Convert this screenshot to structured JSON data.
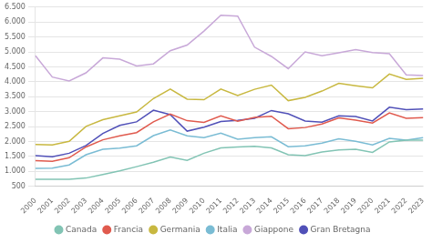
{
  "chart_data": {
    "type": "line",
    "categories": [
      "2000",
      "2001",
      "2002",
      "2003",
      "2004",
      "2005",
      "2006",
      "2007",
      "2008",
      "2009",
      "2010",
      "2011",
      "2012",
      "2013",
      "2014",
      "2015",
      "2016",
      "2017",
      "2018",
      "2019",
      "2020",
      "2021",
      "2022",
      "2023"
    ],
    "series": [
      {
        "name": "Canada",
        "color": "#82c4b4",
        "values": [
          740,
          740,
          740,
          780,
          900,
          1020,
          1160,
          1310,
          1480,
          1370,
          1610,
          1790,
          1820,
          1840,
          1790,
          1560,
          1530,
          1650,
          1720,
          1740,
          1640,
          1990,
          2050,
          2050
        ]
      },
      {
        "name": "Francia",
        "color": "#e05a4e",
        "values": [
          1360,
          1340,
          1460,
          1820,
          2060,
          2190,
          2300,
          2660,
          2920,
          2700,
          2640,
          2860,
          2680,
          2810,
          2850,
          2430,
          2470,
          2590,
          2790,
          2720,
          2620,
          2960,
          2780,
          2800
        ]
      },
      {
        "name": "Germania",
        "color": "#c8b840",
        "values": [
          1900,
          1890,
          2010,
          2510,
          2730,
          2860,
          2990,
          3440,
          3760,
          3420,
          3400,
          3760,
          3540,
          3750,
          3890,
          3370,
          3480,
          3690,
          3950,
          3870,
          3800,
          4260,
          4080,
          4120
        ]
      },
      {
        "name": "Italia",
        "color": "#7abcd4",
        "values": [
          1100,
          1110,
          1220,
          1560,
          1740,
          1780,
          1860,
          2200,
          2390,
          2190,
          2130,
          2280,
          2080,
          2130,
          2160,
          1830,
          1860,
          1950,
          2090,
          2010,
          1890,
          2110,
          2050,
          2130
        ]
      },
      {
        "name": "Giappone",
        "color": "#c8a8d8",
        "values": [
          4870,
          4160,
          4030,
          4300,
          4800,
          4760,
          4530,
          4600,
          5040,
          5230,
          5700,
          6230,
          6200,
          5160,
          4850,
          4440,
          5000,
          4870,
          4970,
          5080,
          4980,
          4940,
          4230,
          4210
        ]
      },
      {
        "name": "Gran Bretagna",
        "color": "#5050b8",
        "values": [
          1530,
          1490,
          1610,
          1870,
          2270,
          2540,
          2660,
          3050,
          2900,
          2350,
          2480,
          2670,
          2710,
          2780,
          3040,
          2930,
          2690,
          2650,
          2860,
          2840,
          2690,
          3150,
          3070,
          3090
        ]
      }
    ],
    "ylim": [
      500,
      6500
    ],
    "yticks": [
      500,
      {
        "value": 1000,
        "label": "1.000"
      },
      {
        "value": 1500,
        "label": "1.500"
      },
      {
        "value": 2000,
        "label": "2.000"
      },
      {
        "value": 2500,
        "label": "2.500"
      },
      {
        "value": 3000,
        "label": "3.000"
      },
      {
        "value": 3500,
        "label": "3.500"
      },
      {
        "value": 4000,
        "label": "4.000"
      },
      {
        "value": 4500,
        "label": "4.500"
      },
      {
        "value": 5000,
        "label": "5.000"
      },
      {
        "value": 5500,
        "label": "5.500"
      },
      {
        "value": 6000,
        "label": "6.000"
      },
      {
        "value": 6500,
        "label": "6.500"
      }
    ],
    "grid": "y",
    "legend": "bottom"
  }
}
